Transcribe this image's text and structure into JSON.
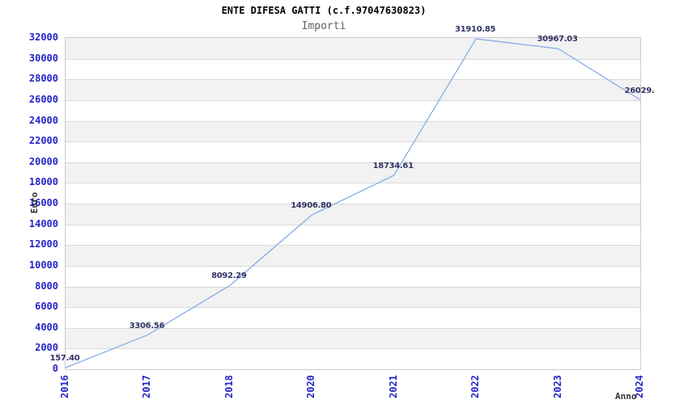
{
  "chart_data": {
    "type": "line",
    "title": "ENTE DIFESA GATTI (c.f.97047630823)",
    "subtitle": "Importi",
    "xlabel": "Anno",
    "ylabel": "Euro",
    "categories": [
      "2016",
      "2017",
      "2018",
      "2020",
      "2021",
      "2022",
      "2023",
      "2024"
    ],
    "values": [
      157.4,
      3306.56,
      8092.29,
      14906.8,
      18734.61,
      31910.85,
      30967.03,
      26029
    ],
    "point_labels": [
      "157.40",
      "3306.56",
      "8092.29",
      "14906.80",
      "18734.61",
      "31910.85",
      "30967.03",
      "26029."
    ],
    "ylim": [
      0,
      32000
    ],
    "ytick_step": 2000,
    "ytick_labels": [
      "0",
      "2000",
      "4000",
      "6000",
      "8000",
      "10000",
      "12000",
      "14000",
      "16000",
      "18000",
      "20000",
      "22000",
      "24000",
      "26000",
      "28000",
      "30000",
      "32000"
    ],
    "grid": "horizontal-bands",
    "legend": "none",
    "colors": {
      "line": "#86ade2",
      "tick_label": "#2525c8",
      "point_label": "#333366",
      "band": "#f2f2f2",
      "gridline": "#d9d9d9",
      "plot_border": "#cccccc",
      "title": "#000000",
      "subtitle": "#636363",
      "axis_title": "#333333"
    }
  }
}
